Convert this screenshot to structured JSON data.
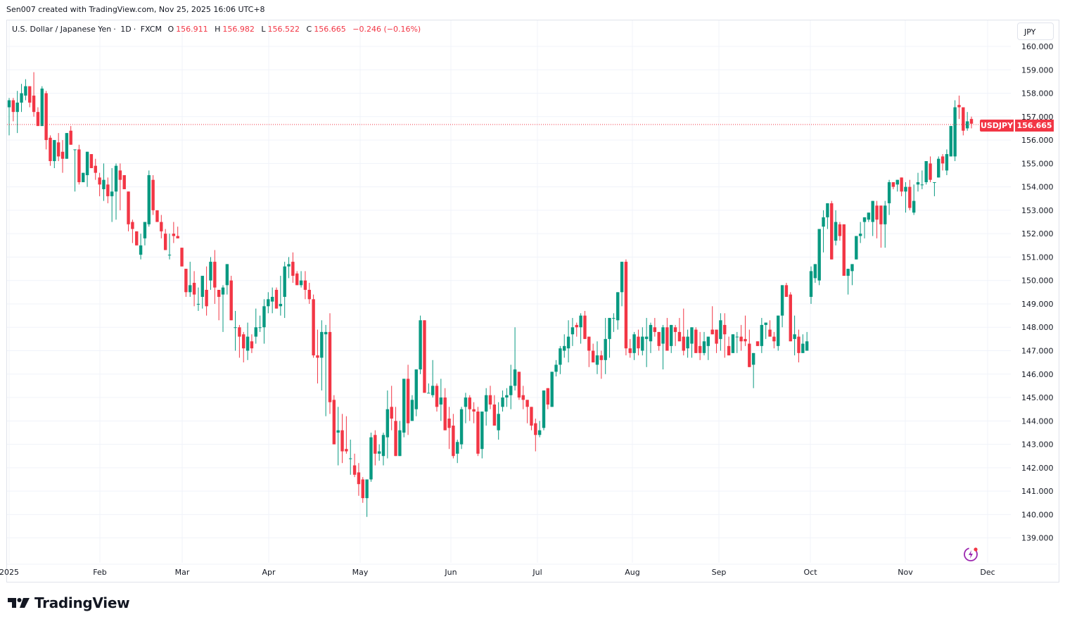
{
  "attribution": "Sen007 created with TradingView.com, Nov 25, 2025 16:06 UTC+8",
  "legend": {
    "symbol_name": "U.S. Dollar / Japanese Yen",
    "interval": "1D",
    "exchange": "FXCM",
    "sep": "·",
    "open_label": "O",
    "open": "156.911",
    "high_label": "H",
    "high": "156.982",
    "low_label": "L",
    "low": "156.522",
    "close_label": "C",
    "close": "156.665",
    "change": "−0.246 (−0.16%)"
  },
  "currency_button": "JPY",
  "price_tag": {
    "symbol": "USDJPY",
    "price": "156.665"
  },
  "logo_text": "TradingView",
  "colors": {
    "up": "#089981",
    "down": "#f23645",
    "grid": "#f0f3fa",
    "text": "#131722",
    "bolt": "#9c27b0"
  },
  "chart_data": {
    "type": "candlestick",
    "title": "U.S. Dollar / Japanese Yen · 1D · FXCM",
    "ylabel": "JPY",
    "ylim": [
      138.5,
      160.5
    ],
    "y_ticks": [
      "160.000",
      "159.000",
      "158.000",
      "157.000",
      "156.000",
      "155.000",
      "154.000",
      "153.000",
      "152.000",
      "151.000",
      "150.000",
      "149.000",
      "148.000",
      "147.000",
      "146.000",
      "145.000",
      "144.000",
      "143.000",
      "142.000",
      "141.000",
      "140.000",
      "139.000"
    ],
    "x_ticks": [
      {
        "label": "2025",
        "x": 13
      },
      {
        "label": "Feb",
        "x": 142
      },
      {
        "label": "Mar",
        "x": 259
      },
      {
        "label": "Apr",
        "x": 382
      },
      {
        "label": "May",
        "x": 512
      },
      {
        "label": "Jun",
        "x": 641
      },
      {
        "label": "Jul",
        "x": 764
      },
      {
        "label": "Aug",
        "x": 899
      },
      {
        "label": "Sep",
        "x": 1022
      },
      {
        "label": "Oct",
        "x": 1152
      },
      {
        "label": "Nov",
        "x": 1287
      },
      {
        "label": "Dec",
        "x": 1404
      }
    ],
    "last_price": 156.665,
    "ohlc": [
      [
        157.4,
        157.8,
        156.2,
        157.7
      ],
      [
        157.7,
        157.8,
        156.8,
        157.2
      ],
      [
        157.2,
        158.1,
        156.3,
        157.6
      ],
      [
        157.6,
        158.4,
        157.2,
        158.0
      ],
      [
        157.9,
        158.6,
        157.7,
        158.3
      ],
      [
        158.3,
        158.3,
        157.4,
        157.6
      ],
      [
        157.9,
        158.9,
        157.0,
        157.2
      ],
      [
        157.2,
        157.4,
        156.6,
        156.6
      ],
      [
        156.6,
        158.3,
        157.2,
        158.2
      ],
      [
        158.0,
        158.1,
        155.6,
        156.0
      ],
      [
        156.1,
        156.2,
        154.9,
        155.1
      ],
      [
        155.1,
        156.0,
        154.8,
        156.0
      ],
      [
        155.9,
        156.3,
        155.1,
        155.3
      ],
      [
        155.5,
        156.0,
        154.6,
        155.2
      ],
      [
        155.2,
        156.3,
        156.2,
        156.3
      ],
      [
        156.4,
        156.6,
        155.8,
        155.8
      ],
      [
        155.6,
        155.6,
        153.8,
        155.6
      ],
      [
        155.6,
        155.8,
        154.1,
        154.2
      ],
      [
        154.2,
        154.6,
        154.6,
        154.6
      ],
      [
        154.5,
        155.5,
        154.0,
        155.5
      ],
      [
        155.4,
        155.4,
        154.8,
        154.8
      ],
      [
        154.9,
        155.2,
        154.3,
        154.6
      ],
      [
        154.4,
        154.6,
        153.6,
        154.1
      ],
      [
        153.9,
        155.0,
        153.4,
        154.3
      ],
      [
        154.1,
        154.4,
        153.3,
        153.6
      ],
      [
        153.6,
        154.8,
        152.5,
        153.8
      ],
      [
        153.8,
        155.0,
        152.6,
        154.9
      ],
      [
        154.7,
        155.0,
        153.0,
        154.3
      ],
      [
        154.5,
        154.5,
        153.9,
        153.9
      ],
      [
        153.8,
        153.8,
        152.1,
        152.4
      ],
      [
        152.5,
        152.6,
        151.6,
        152.2
      ],
      [
        152.1,
        152.0,
        151.5,
        151.5
      ],
      [
        151.1,
        152.0,
        150.9,
        151.5
      ],
      [
        151.8,
        152.3,
        151.5,
        152.5
      ],
      [
        152.4,
        154.7,
        152.3,
        154.5
      ],
      [
        154.3,
        154.5,
        152.8,
        153.0
      ],
      [
        153.0,
        153.0,
        152.5,
        152.5
      ],
      [
        152.5,
        152.8,
        151.8,
        152.1
      ],
      [
        152.0,
        152.2,
        151.6,
        151.3
      ],
      [
        151.1,
        152.0,
        150.9,
        151.1
      ],
      [
        152.0,
        152.5,
        151.6,
        151.9
      ],
      [
        151.9,
        152.3,
        151.8,
        151.8
      ],
      [
        151.4,
        151.4,
        150.8,
        150.6
      ],
      [
        150.5,
        150.5,
        149.3,
        149.5
      ],
      [
        149.5,
        150.8,
        149.3,
        149.8
      ],
      [
        149.9,
        150.4,
        148.9,
        149.4
      ],
      [
        149.0,
        149.7,
        148.7,
        149.0
      ],
      [
        149.3,
        150.2,
        148.8,
        150.2
      ],
      [
        149.6,
        150.6,
        148.5,
        148.9
      ],
      [
        150.0,
        151.0,
        149.6,
        150.8
      ],
      [
        150.8,
        151.3,
        149.0,
        149.7
      ],
      [
        149.6,
        149.6,
        148.3,
        149.3
      ],
      [
        149.4,
        149.8,
        147.8,
        149.7
      ],
      [
        149.8,
        150.6,
        149.4,
        150.7
      ],
      [
        150.0,
        150.2,
        148.3,
        148.3
      ],
      [
        148.0,
        148.7,
        147.0,
        148.0
      ],
      [
        148.0,
        148.1,
        146.7,
        147.6
      ],
      [
        147.7,
        147.8,
        146.5,
        147.1
      ],
      [
        147.0,
        148.2,
        146.6,
        147.6
      ],
      [
        147.4,
        147.7,
        146.9,
        147.1
      ],
      [
        147.6,
        148.8,
        147.3,
        148.0
      ],
      [
        148.0,
        148.5,
        147.8,
        148.0
      ],
      [
        148.0,
        149.2,
        147.3,
        148.9
      ],
      [
        148.9,
        149.5,
        148.6,
        149.2
      ],
      [
        149.1,
        149.7,
        148.6,
        149.3
      ],
      [
        149.6,
        149.7,
        148.8,
        148.8
      ],
      [
        148.9,
        150.2,
        148.5,
        149.0
      ],
      [
        149.3,
        150.8,
        148.4,
        150.6
      ],
      [
        150.6,
        151.0,
        150.1,
        150.7
      ],
      [
        150.8,
        151.2,
        149.9,
        150.2
      ],
      [
        150.3,
        150.4,
        149.8,
        149.8
      ],
      [
        149.8,
        150.4,
        149.7,
        150.0
      ],
      [
        150.0,
        150.4,
        149.2,
        149.6
      ],
      [
        149.6,
        149.9,
        149.0,
        149.2
      ],
      [
        149.2,
        149.4,
        146.7,
        146.8
      ],
      [
        146.8,
        147.9,
        145.6,
        146.7
      ],
      [
        146.7,
        148.3,
        145.3,
        147.8
      ],
      [
        147.7,
        148.1,
        144.2,
        147.8
      ],
      [
        147.8,
        148.6,
        144.3,
        144.8
      ],
      [
        144.9,
        145.1,
        143.2,
        143.0
      ],
      [
        143.5,
        144.6,
        142.1,
        143.6
      ],
      [
        143.6,
        144.3,
        142.2,
        142.7
      ],
      [
        142.8,
        144.2,
        142.6,
        142.7
      ],
      [
        142.4,
        143.2,
        141.7,
        142.4
      ],
      [
        142.1,
        142.6,
        141.6,
        141.7
      ],
      [
        141.8,
        142.2,
        140.8,
        141.3
      ],
      [
        141.5,
        141.6,
        140.5,
        140.7
      ],
      [
        140.7,
        141.5,
        139.9,
        141.5
      ],
      [
        141.5,
        143.5,
        141.4,
        143.3
      ],
      [
        143.4,
        143.6,
        142.1,
        142.6
      ],
      [
        142.6,
        143.0,
        142.3,
        142.7
      ],
      [
        142.5,
        143.5,
        142.1,
        143.4
      ],
      [
        143.3,
        145.3,
        142.4,
        144.5
      ],
      [
        144.6,
        145.5,
        143.6,
        144.1
      ],
      [
        144.0,
        144.6,
        142.5,
        142.5
      ],
      [
        142.5,
        144.0,
        142.5,
        143.6
      ],
      [
        143.5,
        145.8,
        143.3,
        145.8
      ],
      [
        145.8,
        146.4,
        143.4,
        143.9
      ],
      [
        144.0,
        145.1,
        144.3,
        144.9
      ],
      [
        144.5,
        146.2,
        144.2,
        146.2
      ],
      [
        146.2,
        148.5,
        146.0,
        148.3
      ],
      [
        148.3,
        148.3,
        145.9,
        145.2
      ],
      [
        145.2,
        145.6,
        145.4,
        145.2
      ],
      [
        145.1,
        146.6,
        145.0,
        145.5
      ],
      [
        145.5,
        145.6,
        144.4,
        144.6
      ],
      [
        144.7,
        145.8,
        144.0,
        145.0
      ],
      [
        145.0,
        145.4,
        144.1,
        143.6
      ],
      [
        144.1,
        144.6,
        142.8,
        143.7
      ],
      [
        143.8,
        144.3,
        142.4,
        142.5
      ],
      [
        142.6,
        143.2,
        142.2,
        143.1
      ],
      [
        143.0,
        144.6,
        142.8,
        144.5
      ],
      [
        144.6,
        145.2,
        143.9,
        145.0
      ],
      [
        145.0,
        145.1,
        144.0,
        144.5
      ],
      [
        144.5,
        144.8,
        143.9,
        144.4
      ],
      [
        144.4,
        144.6,
        142.5,
        142.6
      ],
      [
        142.8,
        143.3,
        142.4,
        144.4
      ],
      [
        144.4,
        145.4,
        143.8,
        145.1
      ],
      [
        145.1,
        145.5,
        144.5,
        144.7
      ],
      [
        144.7,
        145.1,
        143.8,
        143.8
      ],
      [
        143.6,
        144.8,
        143.2,
        144.3
      ],
      [
        144.6,
        145.3,
        144.4,
        145.0
      ],
      [
        145.0,
        145.4,
        144.6,
        145.1
      ],
      [
        145.1,
        146.4,
        144.5,
        145.5
      ],
      [
        145.5,
        148.0,
        145.3,
        146.2
      ],
      [
        146.1,
        146.1,
        144.9,
        145.0
      ],
      [
        145.1,
        145.5,
        144.5,
        144.9
      ],
      [
        144.9,
        144.9,
        143.9,
        144.6
      ],
      [
        144.6,
        144.4,
        143.6,
        143.8
      ],
      [
        143.9,
        144.1,
        142.7,
        143.4
      ],
      [
        143.4,
        144.0,
        143.3,
        143.6
      ],
      [
        143.7,
        145.3,
        143.6,
        145.3
      ],
      [
        145.4,
        145.4,
        144.5,
        144.7
      ],
      [
        144.6,
        146.0,
        144.6,
        146.1
      ],
      [
        146.1,
        146.6,
        145.9,
        146.4
      ],
      [
        146.4,
        147.2,
        146.0,
        147.1
      ],
      [
        147.0,
        147.7,
        146.7,
        147.2
      ],
      [
        147.1,
        148.3,
        146.5,
        147.6
      ],
      [
        147.7,
        148.4,
        147.2,
        148.0
      ],
      [
        148.1,
        148.2,
        147.6,
        148.0
      ],
      [
        148.0,
        148.6,
        147.3,
        148.5
      ],
      [
        148.5,
        148.7,
        147.6,
        147.5
      ],
      [
        147.6,
        147.6,
        146.3,
        147.0
      ],
      [
        147.0,
        147.3,
        146.5,
        146.5
      ],
      [
        146.4,
        147.4,
        146.0,
        146.8
      ],
      [
        146.8,
        147.0,
        145.8,
        146.6
      ],
      [
        146.6,
        148.4,
        146.0,
        147.5
      ],
      [
        147.5,
        148.3,
        146.7,
        148.4
      ],
      [
        148.4,
        148.6,
        147.8,
        148.4
      ],
      [
        148.3,
        149.5,
        147.9,
        149.5
      ],
      [
        149.5,
        150.7,
        148.9,
        150.8
      ],
      [
        150.8,
        150.9,
        146.8,
        147.1
      ],
      [
        147.1,
        147.5,
        146.7,
        146.9
      ],
      [
        146.9,
        147.8,
        146.6,
        147.7
      ],
      [
        147.6,
        147.9,
        146.8,
        147.1
      ],
      [
        147.0,
        148.0,
        146.8,
        147.6
      ],
      [
        147.5,
        148.4,
        146.3,
        147.6
      ],
      [
        147.4,
        148.2,
        146.9,
        148.1
      ],
      [
        148.0,
        148.4,
        147.6,
        147.8
      ],
      [
        147.8,
        147.7,
        147.0,
        147.2
      ],
      [
        147.3,
        148.1,
        146.2,
        148.0
      ],
      [
        148.0,
        148.4,
        147.1,
        147.0
      ],
      [
        147.2,
        148.1,
        146.9,
        148.1
      ],
      [
        148.0,
        148.1,
        147.2,
        147.8
      ],
      [
        147.8,
        148.4,
        147.5,
        147.4
      ],
      [
        147.6,
        148.8,
        146.8,
        147.0
      ],
      [
        147.1,
        147.9,
        146.7,
        147.6
      ],
      [
        147.3,
        148.0,
        146.7,
        148.0
      ],
      [
        147.9,
        148.0,
        147.1,
        146.9
      ],
      [
        147.2,
        147.8,
        146.6,
        146.9
      ],
      [
        146.9,
        147.8,
        146.8,
        147.4
      ],
      [
        147.2,
        147.5,
        146.6,
        147.6
      ],
      [
        147.9,
        148.9,
        147.7,
        147.7
      ],
      [
        147.9,
        147.9,
        146.9,
        147.3
      ],
      [
        147.5,
        148.6,
        147.0,
        148.3
      ],
      [
        148.1,
        148.6,
        146.7,
        147.7
      ],
      [
        147.2,
        147.6,
        146.9,
        146.8
      ],
      [
        146.9,
        147.5,
        147.1,
        147.7
      ],
      [
        147.6,
        147.8,
        146.9,
        147.6
      ],
      [
        147.6,
        148.1,
        147.0,
        147.4
      ],
      [
        147.5,
        148.5,
        147.2,
        147.4
      ],
      [
        147.3,
        147.9,
        146.5,
        146.3
      ],
      [
        146.4,
        146.5,
        145.4,
        146.9
      ],
      [
        147.4,
        147.2,
        147.2,
        147.2
      ],
      [
        147.2,
        148.4,
        146.9,
        148.1
      ],
      [
        148.1,
        148.2,
        147.5,
        148.2
      ],
      [
        147.9,
        148.3,
        147.7,
        147.6
      ],
      [
        147.6,
        147.8,
        147.1,
        147.4
      ],
      [
        147.2,
        148.4,
        147.0,
        148.5
      ],
      [
        148.5,
        149.8,
        148.0,
        149.8
      ],
      [
        149.8,
        149.9,
        149.4,
        149.3
      ],
      [
        149.4,
        149.5,
        147.8,
        147.4
      ],
      [
        147.5,
        148.5,
        146.8,
        147.7
      ],
      [
        147.6,
        147.9,
        146.5,
        146.9
      ],
      [
        146.9,
        147.7,
        146.9,
        147.3
      ],
      [
        147.0,
        147.8,
        147.0,
        147.4
      ],
      [
        149.3,
        150.6,
        149.0,
        150.4
      ],
      [
        150.1,
        150.5,
        149.9,
        150.7
      ],
      [
        150.0,
        152.2,
        149.8,
        152.2
      ],
      [
        152.3,
        153.0,
        151.2,
        152.7
      ],
      [
        152.7,
        153.3,
        152.2,
        153.3
      ],
      [
        153.3,
        153.4,
        150.9,
        150.9
      ],
      [
        151.7,
        153.0,
        151.5,
        152.5
      ],
      [
        152.4,
        152.5,
        151.7,
        151.9
      ],
      [
        152.4,
        152.4,
        150.4,
        150.2
      ],
      [
        150.2,
        150.4,
        149.4,
        150.5
      ],
      [
        150.4,
        150.5,
        149.8,
        150.7
      ],
      [
        150.9,
        151.4,
        150.9,
        151.9
      ],
      [
        151.9,
        152.5,
        151.6,
        152.0
      ],
      [
        152.5,
        152.5,
        151.8,
        152.7
      ],
      [
        152.6,
        152.8,
        152.5,
        152.9
      ],
      [
        152.5,
        153.1,
        151.9,
        153.4
      ],
      [
        153.2,
        153.4,
        151.8,
        152.6
      ],
      [
        153.2,
        153.0,
        151.4,
        152.4
      ],
      [
        152.4,
        153.4,
        151.4,
        153.2
      ],
      [
        153.3,
        154.3,
        152.8,
        154.2
      ],
      [
        154.2,
        154.2,
        153.9,
        154.0
      ],
      [
        154.1,
        154.3,
        153.8,
        154.3
      ],
      [
        154.4,
        154.3,
        153.6,
        153.8
      ],
      [
        153.8,
        154.2,
        152.9,
        154.0
      ],
      [
        154.0,
        154.3,
        153.0,
        153.1
      ],
      [
        152.9,
        154.1,
        152.8,
        153.4
      ],
      [
        154.1,
        154.6,
        153.8,
        154.2
      ],
      [
        154.1,
        154.7,
        153.9,
        154.1
      ],
      [
        154.2,
        155.0,
        154.1,
        155.1
      ],
      [
        155.0,
        155.3,
        154.2,
        154.3
      ],
      [
        154.2,
        154.2,
        153.6,
        154.2
      ],
      [
        154.4,
        155.3,
        154.5,
        155.2
      ],
      [
        155.3,
        155.4,
        154.7,
        155.0
      ],
      [
        154.7,
        155.6,
        154.5,
        155.4
      ],
      [
        155.3,
        156.6,
        155.3,
        156.6
      ],
      [
        155.3,
        157.7,
        155.1,
        157.4
      ],
      [
        157.5,
        157.9,
        156.9,
        157.4
      ],
      [
        157.4,
        157.4,
        156.2,
        156.4
      ],
      [
        156.5,
        157.2,
        156.4,
        156.8
      ],
      [
        156.9,
        157.0,
        156.5,
        156.7
      ]
    ]
  }
}
